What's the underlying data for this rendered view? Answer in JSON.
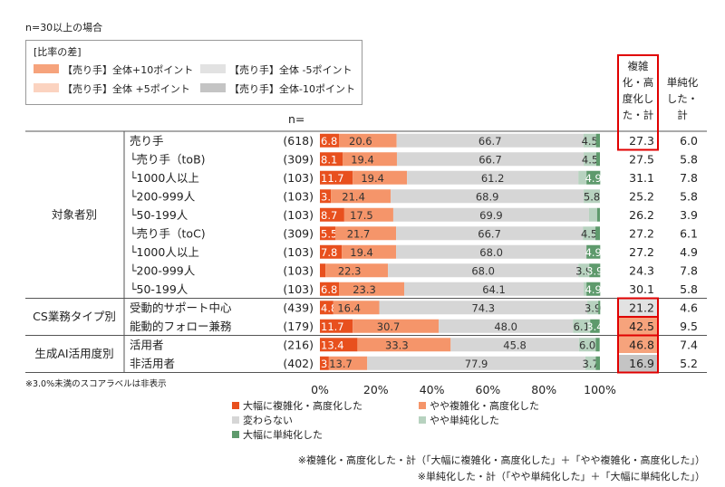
{
  "note_top": "n=30以上の場合",
  "diff_legend": {
    "title": "[比率の差]",
    "items": [
      {
        "label": "【売り手】全体+10ポイント",
        "color": "#f6a37c"
      },
      {
        "label": "【売り手】全体 +5ポイント",
        "color": "#fbd3c0"
      },
      {
        "label": "【売り手】全体 -5ポイント",
        "color": "#e2e2e2"
      },
      {
        "label": "【売り手】全体-10ポイント",
        "color": "#c4c4c4"
      }
    ]
  },
  "n_header": "n=",
  "col_headers": {
    "complex": [
      "複雑",
      "化・高",
      "度化し",
      "た・計"
    ],
    "simple": [
      "単純化",
      "した・",
      "計"
    ]
  },
  "groups": [
    {
      "label": "対象者別",
      "from": 0,
      "to": 8
    },
    {
      "label": "CS業務タイプ別",
      "from": 9,
      "to": 10
    },
    {
      "label": "生成AI活用度別",
      "from": 11,
      "to": 12
    }
  ],
  "footnote": "※3.0%未満のスコアラベルは非表示",
  "chart_data": {
    "type": "bar",
    "orientation": "horizontal",
    "stacked": true,
    "xlim": [
      0,
      100
    ],
    "x_ticks": [
      "0%",
      "20%",
      "40%",
      "60%",
      "80%",
      "100%"
    ],
    "legend": [
      {
        "name": "大幅に複雑化・高度化した",
        "color": "#e8501e"
      },
      {
        "name": "やや複雑化・高度化した",
        "color": "#f5956a"
      },
      {
        "name": "変わらない",
        "color": "#d6d6d6"
      },
      {
        "name": "やや単純化した",
        "color": "#b7d2bf"
      },
      {
        "name": "大幅に単純化した",
        "color": "#5e9a6c"
      }
    ],
    "rows": [
      {
        "label": "売り手",
        "n": "(618)",
        "values": [
          6.8,
          20.6,
          66.7,
          4.5,
          1.4
        ],
        "labels": [
          "6.8",
          "20.6",
          "66.7",
          "4.5",
          ""
        ],
        "complex_total": "27.3",
        "simple_total": "6.0"
      },
      {
        "label": "└売り手（toB)",
        "n": "(309)",
        "values": [
          8.1,
          19.4,
          66.7,
          4.5,
          1.3
        ],
        "labels": [
          "8.1",
          "19.4",
          "66.7",
          "4.5",
          ""
        ],
        "complex_total": "27.5",
        "simple_total": "5.8"
      },
      {
        "label": "└1000人以上",
        "n": "(103)",
        "values": [
          11.7,
          19.4,
          61.2,
          2.9,
          4.9
        ],
        "labels": [
          "11.7",
          "19.4",
          "61.2",
          "",
          "4.9"
        ],
        "complex_total": "31.1",
        "simple_total": "7.8"
      },
      {
        "label": "└200-999人",
        "n": "(103)",
        "values": [
          3.9,
          21.4,
          68.9,
          5.8,
          0
        ],
        "labels": [
          "3.9",
          "21.4",
          "68.9",
          "5.8",
          ""
        ],
        "complex_total": "25.2",
        "simple_total": "5.8"
      },
      {
        "label": "└50-199人",
        "n": "(103)",
        "values": [
          8.7,
          17.5,
          69.9,
          2.9,
          1.0
        ],
        "labels": [
          "8.7",
          "17.5",
          "69.9",
          "",
          ""
        ],
        "complex_total": "26.2",
        "simple_total": "3.9"
      },
      {
        "label": "└売り手（toC)",
        "n": "(309)",
        "values": [
          5.5,
          21.7,
          66.7,
          4.5,
          1.6
        ],
        "labels": [
          "5.5",
          "21.7",
          "66.7",
          "4.5",
          ""
        ],
        "complex_total": "27.2",
        "simple_total": "6.1"
      },
      {
        "label": "└1000人以上",
        "n": "(103)",
        "values": [
          7.8,
          19.4,
          68.0,
          0,
          4.9
        ],
        "labels": [
          "7.8",
          "19.4",
          "68.0",
          "",
          "4.9"
        ],
        "complex_total": "27.2",
        "simple_total": "4.9"
      },
      {
        "label": "└200-999人",
        "n": "(103)",
        "values": [
          2.0,
          22.3,
          68.0,
          3.9,
          3.9
        ],
        "labels": [
          "",
          "22.3",
          "68.0",
          "3.9",
          "3.9"
        ],
        "complex_total": "24.3",
        "simple_total": "7.8"
      },
      {
        "label": "└50-199人",
        "n": "(103)",
        "values": [
          6.8,
          23.3,
          64.1,
          1.0,
          4.9
        ],
        "labels": [
          "6.8",
          "23.3",
          "64.1",
          "",
          "4.9"
        ],
        "complex_total": "30.1",
        "simple_total": "5.8"
      },
      {
        "label": "受動的サポート中心",
        "n": "(439)",
        "values": [
          4.8,
          16.4,
          74.3,
          3.9,
          0.7
        ],
        "labels": [
          "4.8",
          "16.4",
          "74.3",
          "3.9",
          ""
        ],
        "complex_total": "21.2",
        "simple_total": "4.6"
      },
      {
        "label": "能動的フォロー兼務",
        "n": "(179)",
        "values": [
          11.7,
          30.7,
          48.0,
          6.1,
          3.4
        ],
        "labels": [
          "11.7",
          "30.7",
          "48.0",
          "6.1",
          "3.4"
        ],
        "complex_total": "42.5",
        "simple_total": "9.5"
      },
      {
        "label": "活用者",
        "n": "(216)",
        "values": [
          13.4,
          33.3,
          45.8,
          6.0,
          1.4
        ],
        "labels": [
          "13.4",
          "33.3",
          "45.8",
          "6.0",
          ""
        ],
        "complex_total": "46.8",
        "simple_total": "7.4"
      },
      {
        "label": "非活用者",
        "n": "(402)",
        "values": [
          3.2,
          13.7,
          77.9,
          3.7,
          1.5
        ],
        "labels": [
          "3.2",
          "13.7",
          "77.9",
          "3.7",
          ""
        ],
        "complex_total": "16.9",
        "simple_total": "5.2"
      }
    ],
    "complex_highlight": [
      "",
      "",
      "",
      "",
      "",
      "",
      "",
      "",
      "",
      "light-gray",
      "orange",
      "orange",
      "gray"
    ]
  },
  "notes_bottom": [
    "※複雑化・高度化した・計（「大幅に複雑化・高度化した」＋「やや複雑化・高度化した」）",
    "※単純化した・計（「やや単純化した」＋「大幅に単純化した」）"
  ]
}
